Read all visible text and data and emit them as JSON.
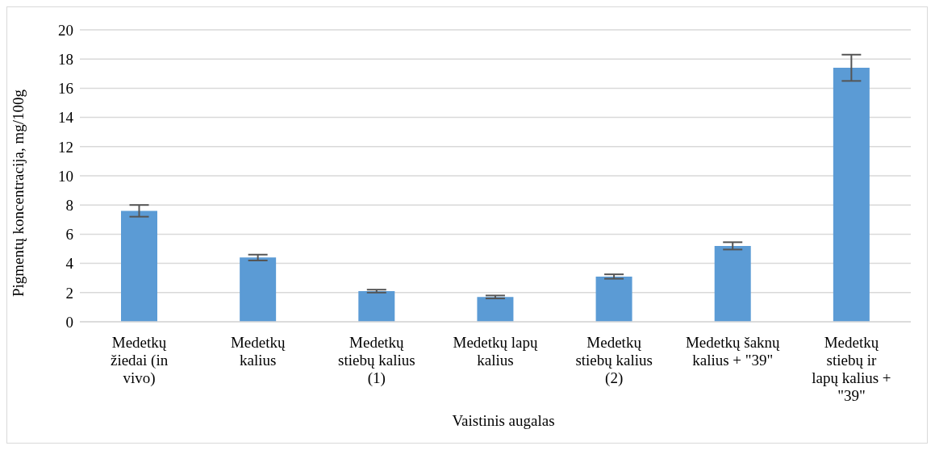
{
  "chart_data": {
    "type": "bar",
    "xlabel": "Vaistinis augalas",
    "ylabel": "Pigmentų koncentracija, mg/100g",
    "categories": [
      "Medetkų žiedai (in vivo)",
      "Medetkų kalius",
      "Medetkų stiebų kalius (1)",
      "Medetkų lapų kalius",
      "Medetkų stiebų kalius (2)",
      "Medetkų šaknų kalius + \"39\"",
      "Medetkų stiebų ir lapų kalius + \"39\""
    ],
    "values": [
      7.6,
      4.4,
      2.1,
      1.7,
      3.1,
      5.2,
      17.4
    ],
    "errors": [
      0.4,
      0.2,
      0.1,
      0.1,
      0.15,
      0.25,
      0.9
    ],
    "color": "#5b9bd5",
    "ylim": [
      0,
      20
    ],
    "yticks": [
      0,
      2,
      4,
      6,
      8,
      10,
      12,
      14,
      16,
      18,
      20
    ],
    "grid": "y"
  }
}
